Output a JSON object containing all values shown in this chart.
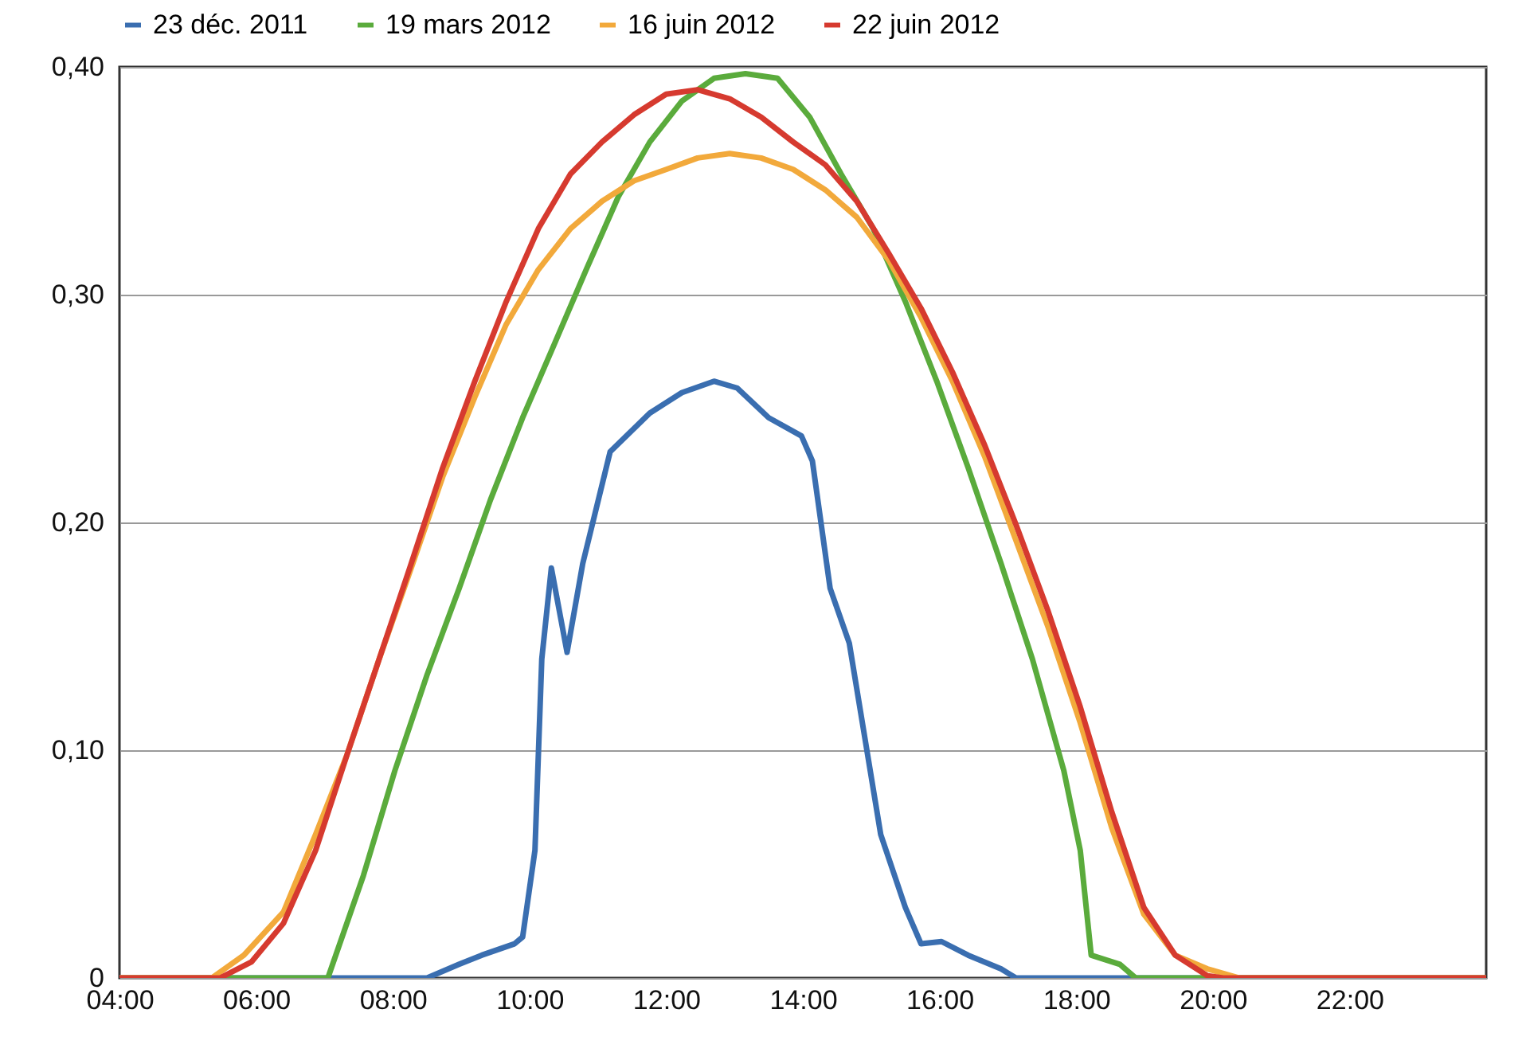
{
  "chart_data": {
    "type": "line",
    "legend": "top",
    "grid": "y",
    "marker": "none",
    "line_style": "solid",
    "xlim": [
      4,
      24
    ],
    "ylim": [
      0,
      0.4
    ],
    "xticks": [
      {
        "value": 4,
        "label": "04:00"
      },
      {
        "value": 6,
        "label": "06:00"
      },
      {
        "value": 8,
        "label": "08:00"
      },
      {
        "value": 10,
        "label": "10:00"
      },
      {
        "value": 12,
        "label": "12:00"
      },
      {
        "value": 14,
        "label": "14:00"
      },
      {
        "value": 16,
        "label": "16:00"
      },
      {
        "value": 18,
        "label": "18:00"
      },
      {
        "value": 20,
        "label": "20:00"
      },
      {
        "value": 22,
        "label": "22:00"
      }
    ],
    "yticks": [
      0,
      {
        "value": 0.1,
        "label": "0,10"
      },
      {
        "value": 0.2,
        "label": "0,20"
      },
      {
        "value": 0.3,
        "label": "0,30"
      },
      {
        "value": 0.4,
        "label": "0,40"
      }
    ],
    "series": [
      {
        "name": "23 déc. 2011",
        "color": "#3a6eb0",
        "x": [
          4,
          8.5,
          8.97,
          9.3,
          9.78,
          9.9,
          10.08,
          10.18,
          10.32,
          10.55,
          10.78,
          11.18,
          11.76,
          12.23,
          12.7,
          13.04,
          13.5,
          13.98,
          14.14,
          14.4,
          14.68,
          14.91,
          15.14,
          15.5,
          15.73,
          16.03,
          16.42,
          16.9,
          17.12,
          24
        ],
        "values": [
          0,
          0,
          0.006,
          0.01,
          0.015,
          0.018,
          0.056,
          0.14,
          0.18,
          0.143,
          0.182,
          0.231,
          0.248,
          0.257,
          0.262,
          0.259,
          0.246,
          0.238,
          0.227,
          0.171,
          0.147,
          0.105,
          0.063,
          0.031,
          0.015,
          0.016,
          0.01,
          0.004,
          0,
          0
        ]
      },
      {
        "name": "19 mars 2012",
        "color": "#5aab3c",
        "x": [
          4,
          7.05,
          7.57,
          8.03,
          8.5,
          8.97,
          9.43,
          9.9,
          10.36,
          10.83,
          11.3,
          11.76,
          12.23,
          12.7,
          13.16,
          13.63,
          14.1,
          14.56,
          15.03,
          15.5,
          15.96,
          16.42,
          16.9,
          17.36,
          17.82,
          18.06,
          18.22,
          18.64,
          18.87,
          24
        ],
        "values": [
          0,
          0,
          0.045,
          0.091,
          0.133,
          0.171,
          0.21,
          0.246,
          0.278,
          0.311,
          0.343,
          0.367,
          0.385,
          0.395,
          0.397,
          0.395,
          0.378,
          0.353,
          0.329,
          0.297,
          0.262,
          0.224,
          0.182,
          0.14,
          0.091,
          0.056,
          0.01,
          0.006,
          0,
          0
        ]
      },
      {
        "name": "16 juin 2012",
        "color": "#f2a93b",
        "x": [
          4,
          5.35,
          5.82,
          6.4,
          6.87,
          7.33,
          7.8,
          8.27,
          8.73,
          9.2,
          9.66,
          10.13,
          10.6,
          11.06,
          11.53,
          12,
          12.46,
          12.93,
          13.39,
          13.86,
          14.33,
          14.79,
          15.26,
          15.73,
          16.19,
          16.66,
          17.12,
          17.59,
          18.06,
          18.52,
          18.99,
          19.45,
          19.92,
          20.39,
          24
        ],
        "values": [
          0,
          0,
          0.01,
          0.029,
          0.063,
          0.098,
          0.14,
          0.18,
          0.22,
          0.255,
          0.287,
          0.311,
          0.329,
          0.341,
          0.35,
          0.355,
          0.36,
          0.362,
          0.36,
          0.355,
          0.346,
          0.334,
          0.315,
          0.29,
          0.262,
          0.229,
          0.192,
          0.154,
          0.112,
          0.066,
          0.028,
          0.01,
          0.004,
          0,
          0
        ]
      },
      {
        "name": "22 juin 2012",
        "color": "#d63a2f",
        "x": [
          4,
          5.47,
          5.93,
          6.4,
          6.87,
          7.33,
          7.8,
          8.27,
          8.73,
          9.2,
          9.66,
          10.13,
          10.6,
          11.06,
          11.53,
          12,
          12.46,
          12.93,
          13.39,
          13.86,
          14.33,
          14.79,
          15.26,
          15.73,
          16.19,
          16.66,
          17.12,
          17.59,
          18.06,
          18.52,
          18.99,
          19.45,
          19.92,
          20.15,
          24
        ],
        "values": [
          0,
          0,
          0.007,
          0.024,
          0.056,
          0.098,
          0.14,
          0.182,
          0.224,
          0.262,
          0.297,
          0.329,
          0.353,
          0.367,
          0.379,
          0.388,
          0.39,
          0.386,
          0.378,
          0.367,
          0.357,
          0.341,
          0.318,
          0.294,
          0.266,
          0.234,
          0.199,
          0.161,
          0.119,
          0.073,
          0.031,
          0.01,
          0.001,
          0,
          0
        ]
      }
    ]
  }
}
